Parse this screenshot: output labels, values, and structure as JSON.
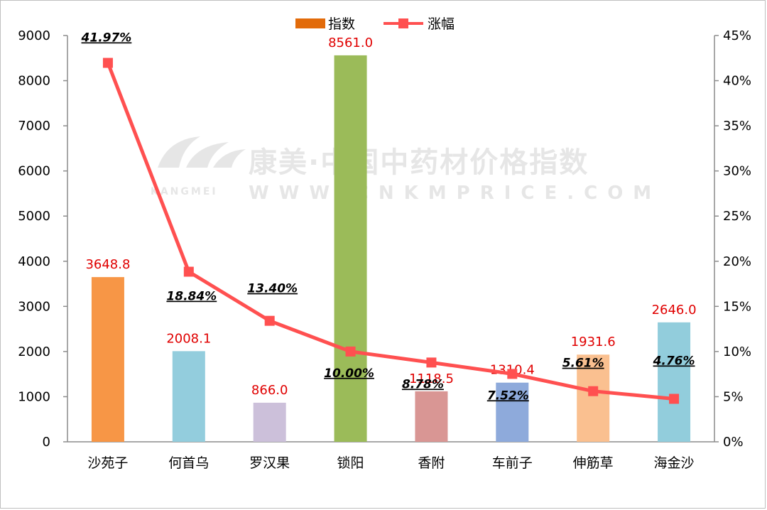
{
  "chart_data": {
    "type": "bar",
    "categories": [
      "沙苑子",
      "何首乌",
      "罗汉果",
      "锁阳",
      "香附",
      "车前子",
      "伸筋草",
      "海金沙"
    ],
    "series": [
      {
        "name": "指数",
        "type": "bar",
        "axis": "left",
        "values": [
          3648.8,
          2008.1,
          866.0,
          8561.0,
          1118.5,
          1310.4,
          1931.6,
          2646.0
        ],
        "labels": [
          "3648.8",
          "2008.1",
          "866.0",
          "8561.0",
          "1118.5",
          "1310.4",
          "1931.6",
          "2646.0"
        ],
        "legend_color": "#e26b0a",
        "bar_colors": [
          "#f79646",
          "#93cddd",
          "#ccc0da",
          "#9bbb59",
          "#d99694",
          "#8eaadb",
          "#fac090",
          "#92cddc"
        ]
      },
      {
        "name": "涨幅",
        "type": "line",
        "axis": "right",
        "values": [
          41.97,
          18.84,
          13.4,
          10.0,
          8.78,
          7.52,
          5.61,
          4.76
        ],
        "labels": [
          "41.97%",
          "18.84%",
          "13.40%",
          "10.00%",
          "8.78%",
          "7.52%",
          "5.61%",
          "4.76%"
        ],
        "color": "#ff5050"
      }
    ],
    "y_left": {
      "min": 0,
      "max": 9000,
      "ticks": [
        "0",
        "1000",
        "2000",
        "3000",
        "4000",
        "5000",
        "6000",
        "7000",
        "8000",
        "9000"
      ]
    },
    "y_right": {
      "min": 0,
      "max": 45,
      "ticks": [
        "0%",
        "5%",
        "10%",
        "15%",
        "20%",
        "25%",
        "30%",
        "35%",
        "40%",
        "45%"
      ]
    },
    "legend_position": "top-center",
    "grid": false
  },
  "watermark": {
    "main": "康美·中国中药材价格指数",
    "brand": "KANGMEI",
    "sub": "WWW.CNKMPRICE.COM"
  }
}
